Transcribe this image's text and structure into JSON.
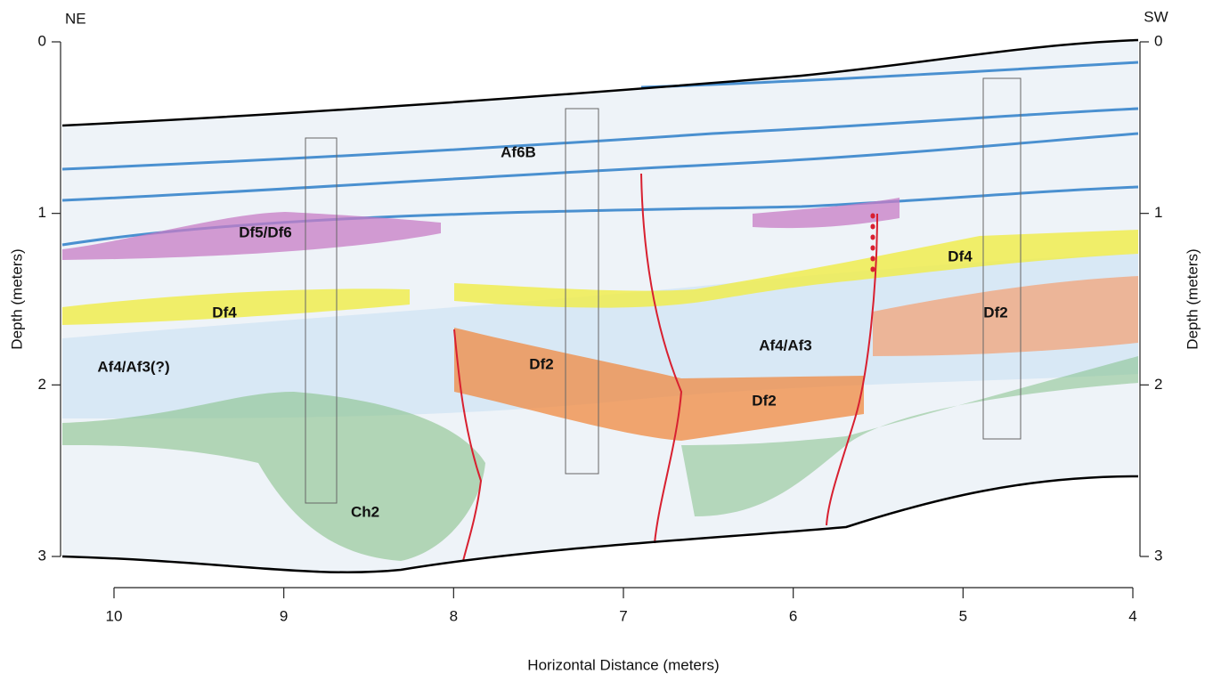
{
  "corners": {
    "left": "NE",
    "right": "SW"
  },
  "left_axis": {
    "label": "Depth (meters)",
    "ylim": [
      0,
      3
    ],
    "ticks": [
      0,
      1,
      2,
      3
    ]
  },
  "right_axis": {
    "label": "Depth (meters)",
    "ylim": [
      0,
      3
    ],
    "ticks": [
      0,
      1,
      2,
      3
    ]
  },
  "bottom_axis": {
    "label": "Horizontal Distance (meters)",
    "xlim": [
      10,
      4
    ],
    "ticks": [
      10,
      9,
      8,
      7,
      6,
      5,
      4
    ]
  },
  "units": [
    "Af6B",
    "Df5/Df6",
    "Df4",
    "Df4",
    "Af4/Af3(?)",
    "Df2",
    "Af4/Af3",
    "Df2",
    "Df2",
    "Ch2"
  ]
}
